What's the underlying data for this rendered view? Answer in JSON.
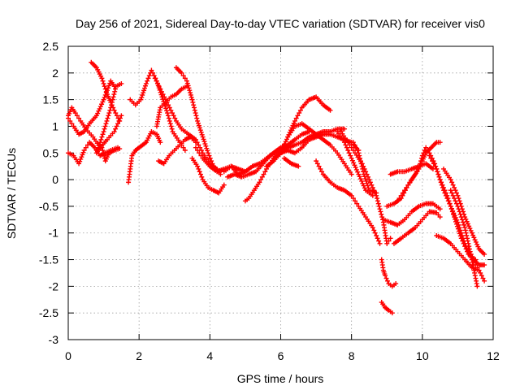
{
  "chart_data": {
    "type": "scatter",
    "title": "Day 256 of 2021, Sidereal Day-to-day VTEC variation (SDTVAR) for receiver vis0",
    "xlabel": "GPS time / hours",
    "ylabel": "SDTVAR / TECUs",
    "xlim": [
      0,
      12
    ],
    "ylim": [
      -3,
      2.5
    ],
    "xticks": [
      "0",
      "2",
      "4",
      "6",
      "8",
      "10",
      "12"
    ],
    "yticks": [
      "-3",
      "-2.5",
      "-2",
      "-1.5",
      "-1",
      "-0.5",
      "0",
      "0.5",
      "1",
      "1.5",
      "2",
      "2.5"
    ],
    "grid": true,
    "marker": "+",
    "colors": {
      "series": "#ff0000",
      "grid": "#a0a0a0",
      "axes": "#000000"
    },
    "series": [
      {
        "x": [
          0.0,
          0.15,
          0.3,
          0.45,
          0.6,
          0.75,
          0.9,
          1.05,
          1.2,
          1.4
        ],
        "y": [
          0.5,
          0.45,
          0.3,
          0.55,
          0.7,
          0.6,
          0.45,
          0.5,
          0.55,
          0.6
        ]
      },
      {
        "x": [
          0.0,
          0.1,
          0.2,
          0.35,
          0.5,
          0.7,
          0.9,
          1.1,
          1.3,
          1.5
        ],
        "y": [
          1.2,
          1.35,
          1.25,
          1.1,
          0.95,
          0.8,
          0.6,
          0.75,
          0.9,
          1.2
        ]
      },
      {
        "x": [
          0.0,
          0.15,
          0.3,
          0.45,
          0.6,
          0.8,
          1.0,
          1.2,
          1.3
        ],
        "y": [
          1.15,
          1.0,
          0.85,
          0.9,
          1.05,
          1.2,
          1.5,
          1.85,
          1.75
        ]
      },
      {
        "x": [
          0.65,
          0.8,
          0.95,
          1.1,
          1.2,
          1.3,
          1.45
        ],
        "y": [
          2.2,
          2.1,
          1.9,
          1.6,
          1.45,
          1.3,
          1.1
        ]
      },
      {
        "x": [
          0.8,
          0.95,
          1.05,
          1.15,
          1.3,
          1.45
        ],
        "y": [
          0.55,
          0.6,
          0.35,
          0.5,
          0.55,
          0.58
        ]
      },
      {
        "x": [
          0.8,
          1.0,
          1.2,
          1.35,
          1.5
        ],
        "y": [
          0.5,
          0.9,
          1.35,
          1.75,
          1.8
        ]
      },
      {
        "x": [
          1.7,
          1.8,
          1.9,
          2.0,
          2.1,
          2.2,
          2.35,
          2.5,
          2.6
        ],
        "y": [
          -0.05,
          0.45,
          0.55,
          0.6,
          0.65,
          0.7,
          0.9,
          0.85,
          0.7
        ]
      },
      {
        "x": [
          1.75,
          1.9,
          2.05,
          2.2,
          2.35,
          2.5,
          2.65,
          2.8,
          2.95,
          3.15,
          3.3
        ],
        "y": [
          1.5,
          1.4,
          1.5,
          1.8,
          2.05,
          1.85,
          1.55,
          1.25,
          0.9,
          0.7,
          0.55
        ]
      },
      {
        "x": [
          2.5,
          2.6,
          2.75,
          2.9,
          3.05,
          3.2,
          3.35
        ],
        "y": [
          1.0,
          1.35,
          1.45,
          1.55,
          1.6,
          1.7,
          1.75
        ]
      },
      {
        "x": [
          2.55,
          2.7,
          2.85,
          3.0,
          3.15,
          3.3,
          3.45,
          3.6
        ],
        "y": [
          0.35,
          0.3,
          0.45,
          0.55,
          0.65,
          0.75,
          0.8,
          0.7
        ]
      },
      {
        "x": [
          2.45,
          2.6,
          2.75,
          2.9,
          3.05,
          3.2,
          3.4,
          3.6,
          3.8,
          4.0,
          4.2
        ],
        "y": [
          1.9,
          1.7,
          1.5,
          1.3,
          1.1,
          0.95,
          0.85,
          0.75,
          0.5,
          0.3,
          0.2
        ]
      },
      {
        "x": [
          3.05,
          3.2,
          3.35,
          3.5,
          3.65,
          3.8,
          3.95,
          4.1,
          4.3
        ],
        "y": [
          2.1,
          2.0,
          1.85,
          1.5,
          1.1,
          0.8,
          0.5,
          0.25,
          0.1
        ]
      },
      {
        "x": [
          3.6,
          3.8,
          4.0,
          4.2,
          4.4,
          4.6,
          4.8,
          5.0
        ],
        "y": [
          0.6,
          0.4,
          0.25,
          0.15,
          0.2,
          0.25,
          0.2,
          0.15
        ]
      },
      {
        "x": [
          3.5,
          3.65,
          3.8,
          3.95,
          4.1,
          4.25,
          4.4
        ],
        "y": [
          0.4,
          0.25,
          0.0,
          -0.15,
          -0.2,
          -0.25,
          -0.1
        ]
      },
      {
        "x": [
          4.4,
          4.6,
          4.8,
          5.0,
          5.2,
          5.4,
          5.6,
          5.8,
          6.0
        ],
        "y": [
          0.15,
          0.25,
          0.1,
          0.15,
          0.25,
          0.3,
          0.4,
          0.5,
          0.6
        ]
      },
      {
        "x": [
          4.5,
          4.7,
          4.9,
          5.1,
          5.3,
          5.5,
          5.7,
          5.9,
          6.1
        ],
        "y": [
          0.05,
          0.1,
          0.05,
          0.1,
          0.15,
          0.3,
          0.45,
          0.55,
          0.65
        ]
      },
      {
        "x": [
          5.0,
          5.1,
          5.25,
          5.4,
          5.6,
          5.8,
          6.0,
          6.2,
          6.4,
          6.6,
          6.8
        ],
        "y": [
          -0.4,
          -0.35,
          -0.2,
          -0.05,
          0.2,
          0.4,
          0.55,
          0.65,
          0.75,
          0.85,
          0.9
        ]
      },
      {
        "x": [
          5.6,
          5.8,
          6.0,
          6.2,
          6.4,
          6.6,
          6.8,
          7.0,
          7.2,
          7.4
        ],
        "y": [
          0.25,
          0.35,
          0.5,
          0.8,
          1.1,
          1.35,
          1.5,
          1.55,
          1.4,
          1.3
        ]
      },
      {
        "x": [
          5.8,
          6.0,
          6.2,
          6.4,
          6.6,
          6.8,
          7.0,
          7.2,
          7.4,
          7.6,
          7.8
        ],
        "y": [
          0.4,
          0.5,
          0.6,
          0.65,
          0.7,
          0.8,
          0.85,
          0.9,
          0.9,
          0.95,
          0.95
        ]
      },
      {
        "x": [
          6.0,
          6.2,
          6.4,
          6.6,
          6.8,
          7.0,
          7.2,
          7.4,
          7.6,
          7.8,
          8.0,
          8.2
        ],
        "y": [
          0.5,
          0.55,
          0.5,
          0.6,
          0.75,
          0.8,
          0.85,
          0.85,
          0.8,
          0.75,
          0.7,
          0.55
        ]
      },
      {
        "x": [
          6.1,
          6.3,
          6.5
        ],
        "y": [
          0.4,
          0.3,
          0.25
        ]
      },
      {
        "x": [
          6.2,
          6.4,
          6.6,
          6.8,
          7.0,
          7.2,
          7.4,
          7.6,
          7.8,
          8.0
        ],
        "y": [
          0.8,
          1.0,
          1.05,
          0.95,
          0.85,
          0.75,
          0.65,
          0.5,
          0.3,
          0.1
        ]
      },
      {
        "x": [
          7.0,
          7.2,
          7.4,
          7.6,
          7.8,
          8.0,
          8.2,
          8.4,
          8.6,
          8.8
        ],
        "y": [
          0.35,
          0.1,
          -0.05,
          -0.15,
          -0.2,
          -0.3,
          -0.5,
          -0.7,
          -0.9,
          -1.2
        ]
      },
      {
        "x": [
          7.6,
          7.8,
          8.0,
          8.2,
          8.4,
          8.6
        ],
        "y": [
          0.9,
          0.7,
          0.4,
          0.1,
          -0.2,
          -0.3
        ]
      },
      {
        "x": [
          7.7,
          7.9,
          8.1,
          8.3,
          8.5,
          8.7,
          8.9,
          9.0,
          9.1
        ],
        "y": [
          0.9,
          0.7,
          0.5,
          0.3,
          0.0,
          -0.3,
          -0.8,
          -1.2,
          -1.1
        ]
      },
      {
        "x": [
          8.05,
          8.2,
          8.35,
          8.5,
          8.7
        ],
        "y": [
          0.7,
          0.5,
          0.1,
          -0.2,
          -0.25
        ]
      },
      {
        "x": [
          8.85,
          8.9,
          8.95,
          9.05,
          9.15,
          9.25
        ],
        "y": [
          -1.5,
          -1.7,
          -1.8,
          -1.95,
          -2.0,
          -1.95
        ]
      },
      {
        "x": [
          8.85,
          8.95,
          9.05,
          9.15
        ],
        "y": [
          -2.3,
          -2.4,
          -2.45,
          -2.5
        ]
      },
      {
        "x": [
          8.9,
          9.1,
          9.3,
          9.5,
          9.7,
          9.9,
          10.1,
          10.3,
          10.5
        ],
        "y": [
          -0.75,
          -0.8,
          -0.85,
          -0.75,
          -0.6,
          -0.5,
          -0.45,
          -0.45,
          -0.55
        ]
      },
      {
        "x": [
          9.0,
          9.2,
          9.4,
          9.6,
          9.8,
          10.0,
          10.1,
          10.25,
          10.4,
          10.5
        ],
        "y": [
          -0.5,
          -0.45,
          -0.35,
          -0.1,
          0.1,
          0.35,
          0.5,
          0.6,
          0.7,
          0.7
        ]
      },
      {
        "x": [
          9.1,
          9.3,
          9.5,
          9.7,
          9.9,
          10.1,
          10.3
        ],
        "y": [
          0.1,
          0.15,
          0.15,
          0.2,
          0.25,
          0.3,
          0.2
        ]
      },
      {
        "x": [
          9.2,
          9.4,
          9.6,
          9.8,
          10.0,
          10.2,
          10.4,
          10.5
        ],
        "y": [
          -1.2,
          -1.1,
          -1.0,
          -0.9,
          -0.75,
          -0.6,
          -0.62,
          -0.7
        ]
      },
      {
        "x": [
          9.3,
          9.5,
          9.7,
          9.9,
          10.0,
          10.1,
          10.2,
          10.35,
          10.5,
          10.7,
          10.9,
          11.1,
          11.3,
          11.5
        ],
        "y": [
          -0.4,
          -0.2,
          0.0,
          0.2,
          0.45,
          0.6,
          0.5,
          0.3,
          0.0,
          -0.3,
          -0.7,
          -1.1,
          -1.4,
          -1.5
        ]
      },
      {
        "x": [
          10.4,
          10.6,
          10.8,
          11.0,
          11.2,
          11.4,
          11.6
        ],
        "y": [
          -1.05,
          -1.1,
          -1.2,
          -1.35,
          -1.5,
          -1.65,
          -1.7
        ]
      },
      {
        "x": [
          10.2,
          10.4,
          10.6,
          10.8,
          11.0,
          11.2,
          11.4,
          11.6,
          11.75
        ],
        "y": [
          0.45,
          0.2,
          -0.2,
          -0.5,
          -0.8,
          -1.2,
          -1.5,
          -1.7,
          -1.9
        ]
      },
      {
        "x": [
          10.6,
          10.8,
          11.0,
          11.2,
          11.4,
          11.6,
          11.75
        ],
        "y": [
          0.2,
          0.0,
          -0.3,
          -0.7,
          -1.0,
          -1.3,
          -1.4
        ]
      },
      {
        "x": [
          10.8,
          11.0,
          11.2,
          11.4,
          11.55
        ],
        "y": [
          -0.2,
          -0.5,
          -0.9,
          -1.5,
          -2.0
        ]
      },
      {
        "x": [
          11.3,
          11.45,
          11.6,
          11.75
        ],
        "y": [
          -1.3,
          -1.5,
          -1.6,
          -1.6
        ]
      }
    ]
  }
}
